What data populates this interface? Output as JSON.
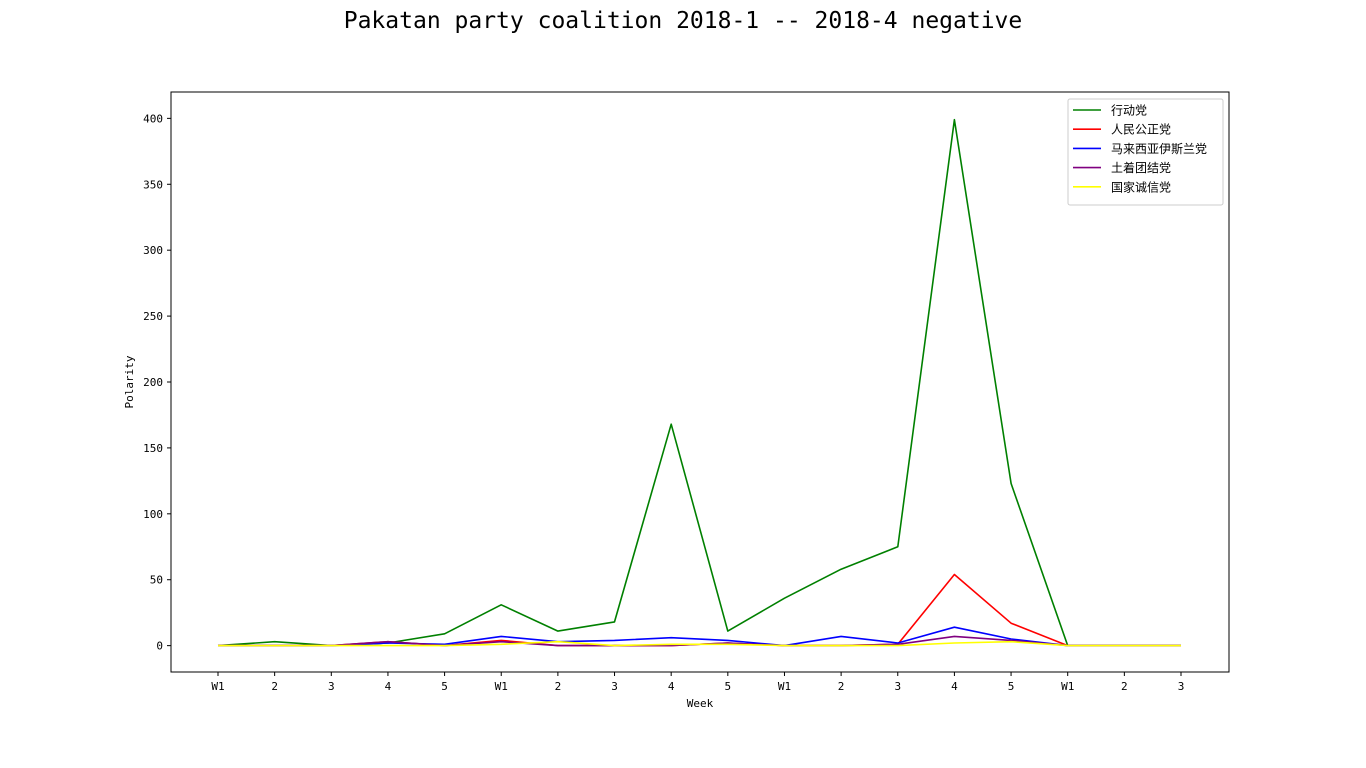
{
  "chart_data": {
    "type": "line",
    "title": "Pakatan party coalition 2018-1 -- 2018-4 negative",
    "xlabel": "Week",
    "ylabel": "Polarity",
    "categories": [
      "W1",
      "2",
      "3",
      "4",
      "5",
      "W1",
      "2",
      "3",
      "4",
      "5",
      "W1",
      "2",
      "3",
      "4",
      "5",
      "W1",
      "2",
      "3"
    ],
    "yticks": [
      0,
      50,
      100,
      150,
      200,
      250,
      300,
      350,
      400
    ],
    "ylim": [
      -20,
      420
    ],
    "legend_position": "top-right",
    "grid": false,
    "series": [
      {
        "name": "行动党",
        "color": "#008000",
        "values": [
          0,
          3,
          0,
          2,
          9,
          31,
          11,
          18,
          168,
          11,
          36,
          58,
          75,
          399,
          123,
          0,
          0,
          0
        ]
      },
      {
        "name": "人民公正党",
        "color": "#ff0000",
        "values": [
          0,
          0,
          0,
          3,
          0,
          4,
          0,
          0,
          0,
          2,
          0,
          0,
          1,
          54,
          17,
          0,
          0,
          0
        ]
      },
      {
        "name": "马来西亚伊斯兰党",
        "color": "#0000ff",
        "values": [
          0,
          0,
          0,
          2,
          1,
          7,
          3,
          4,
          6,
          4,
          0,
          7,
          2,
          14,
          5,
          0,
          0,
          0
        ]
      },
      {
        "name": "土着团结党",
        "color": "#800080",
        "values": [
          0,
          0,
          0,
          3,
          0,
          3,
          0,
          0,
          0,
          2,
          0,
          0,
          1,
          7,
          4,
          0,
          0,
          0
        ]
      },
      {
        "name": "国家诚信党",
        "color": "#ffff00",
        "values": [
          0,
          0,
          0,
          0,
          0,
          1,
          3,
          0,
          1,
          1,
          0,
          0,
          0,
          2,
          3,
          0,
          0,
          0
        ]
      }
    ]
  }
}
